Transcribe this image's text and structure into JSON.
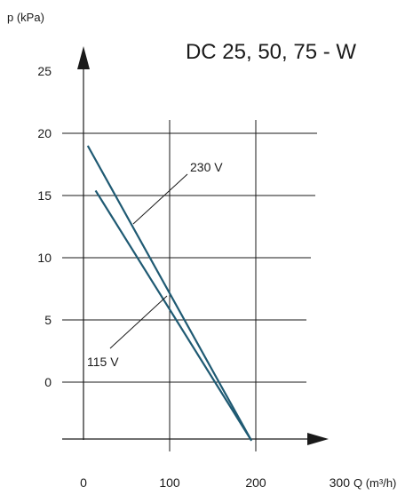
{
  "chart_data": {
    "type": "line",
    "title": "DC 25, 50, 75 - W",
    "ylabel": "p (kPa)",
    "xlabel": "Q (m³/h)",
    "x_ticks": [
      0,
      100,
      200,
      300
    ],
    "y_ticks": [
      0,
      5,
      10,
      15,
      20,
      25
    ],
    "xlim": [
      0,
      300
    ],
    "ylim": [
      -5,
      25
    ],
    "grid": true,
    "colors": {
      "series": "#1f5a73",
      "ink": "#1a1a1a"
    },
    "series": [
      {
        "name": "230 V",
        "x": [
          5,
          195
        ],
        "y": [
          19,
          -4.7
        ]
      },
      {
        "name": "115 V",
        "x": [
          14,
          195
        ],
        "y": [
          15.4,
          -4.7
        ]
      }
    ]
  }
}
